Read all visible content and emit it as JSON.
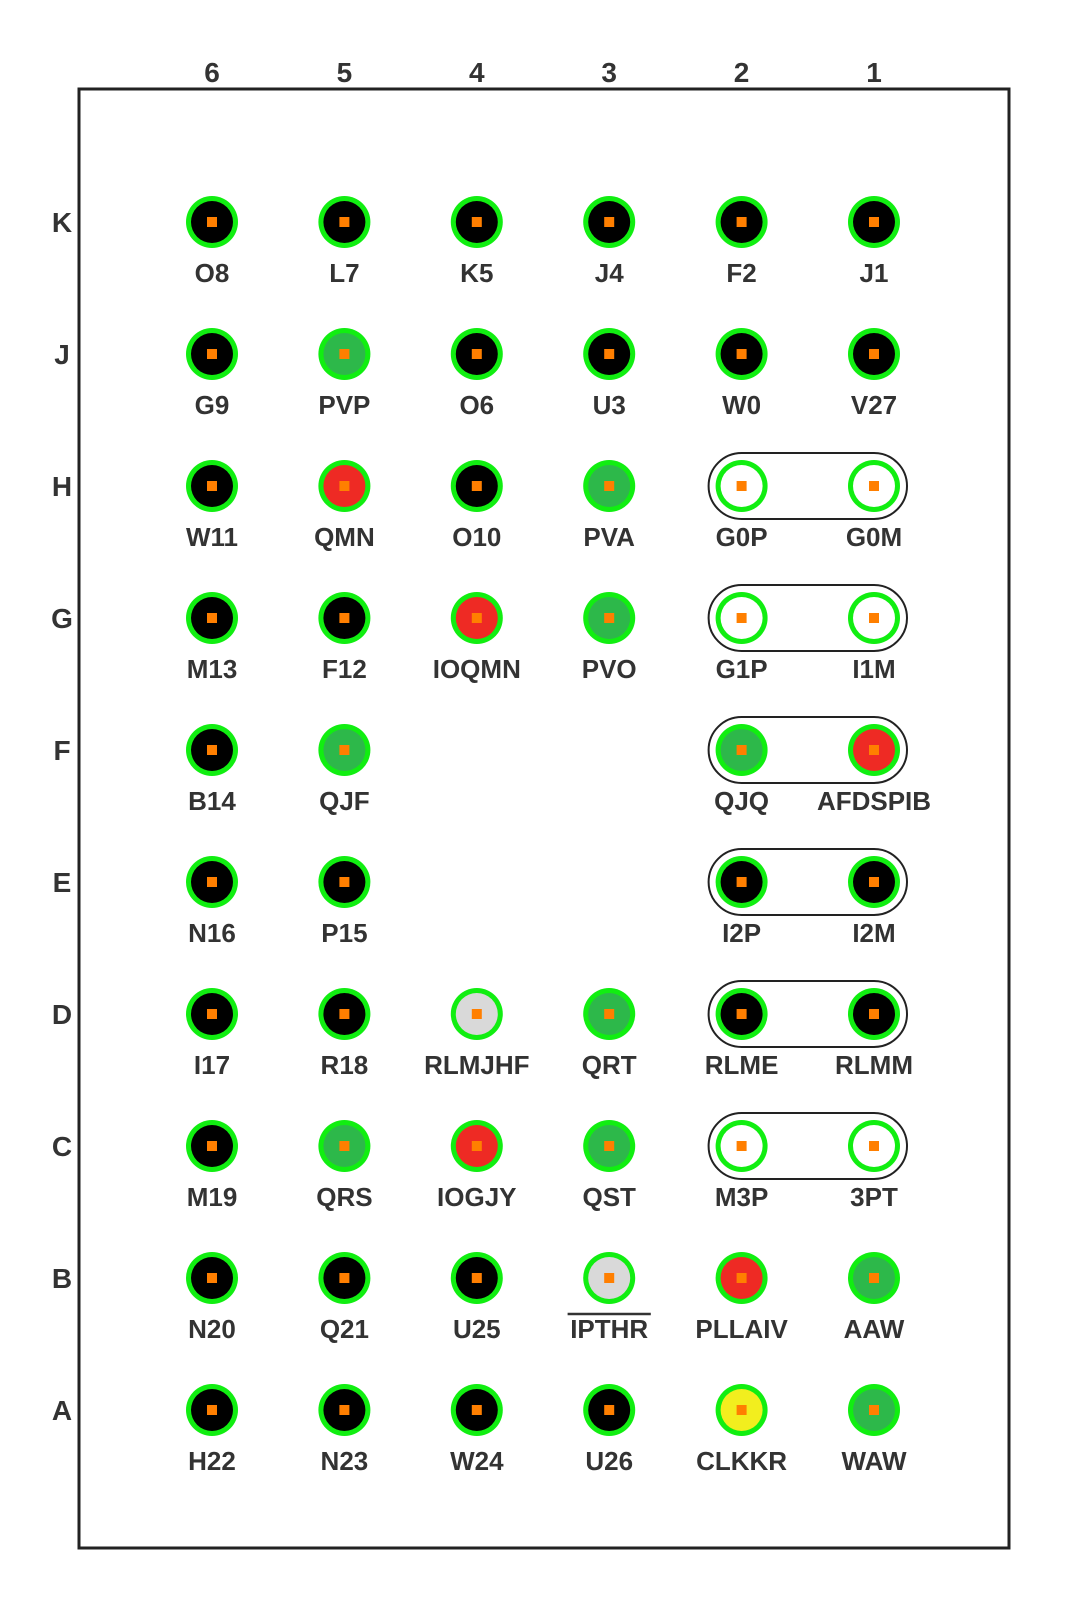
{
  "columns": [
    "6",
    "5",
    "4",
    "3",
    "2",
    "1"
  ],
  "rows": [
    "K",
    "J",
    "H",
    "G",
    "F",
    "E",
    "D",
    "C",
    "B",
    "A"
  ],
  "colors": {
    "black": "#000000",
    "green": "#2db84a",
    "red": "#ee2a24",
    "gray": "#d9d9d9",
    "yellow": "#f2ee1e",
    "white": "#ffffff",
    "ring": "#11ee11",
    "center": "#ff7f00"
  },
  "pins": [
    {
      "row": "K",
      "col": "6",
      "label": "O8",
      "fill": "black"
    },
    {
      "row": "K",
      "col": "5",
      "label": "L7",
      "fill": "black"
    },
    {
      "row": "K",
      "col": "4",
      "label": "K5",
      "fill": "black"
    },
    {
      "row": "K",
      "col": "3",
      "label": "J4",
      "fill": "black"
    },
    {
      "row": "K",
      "col": "2",
      "label": "F2",
      "fill": "black"
    },
    {
      "row": "K",
      "col": "1",
      "label": "J1",
      "fill": "black"
    },
    {
      "row": "J",
      "col": "6",
      "label": "G9",
      "fill": "black"
    },
    {
      "row": "J",
      "col": "5",
      "label": "PVP",
      "fill": "green"
    },
    {
      "row": "J",
      "col": "4",
      "label": "O6",
      "fill": "black"
    },
    {
      "row": "J",
      "col": "3",
      "label": "U3",
      "fill": "black"
    },
    {
      "row": "J",
      "col": "2",
      "label": "W0",
      "fill": "black"
    },
    {
      "row": "J",
      "col": "1",
      "label": "V27",
      "fill": "black"
    },
    {
      "row": "H",
      "col": "6",
      "label": "W11",
      "fill": "black"
    },
    {
      "row": "H",
      "col": "5",
      "label": "QMN",
      "fill": "red"
    },
    {
      "row": "H",
      "col": "4",
      "label": "O10",
      "fill": "black"
    },
    {
      "row": "H",
      "col": "3",
      "label": "PVA",
      "fill": "green"
    },
    {
      "row": "H",
      "col": "2",
      "label": "G0P",
      "fill": "white"
    },
    {
      "row": "H",
      "col": "1",
      "label": "G0M",
      "fill": "white"
    },
    {
      "row": "G",
      "col": "6",
      "label": "M13",
      "fill": "black"
    },
    {
      "row": "G",
      "col": "5",
      "label": "F12",
      "fill": "black"
    },
    {
      "row": "G",
      "col": "4",
      "label": "IOQMN",
      "fill": "red"
    },
    {
      "row": "G",
      "col": "3",
      "label": "PVO",
      "fill": "green"
    },
    {
      "row": "G",
      "col": "2",
      "label": "G1P",
      "fill": "white"
    },
    {
      "row": "G",
      "col": "1",
      "label": "I1M",
      "fill": "white"
    },
    {
      "row": "F",
      "col": "6",
      "label": "B14",
      "fill": "black"
    },
    {
      "row": "F",
      "col": "5",
      "label": "QJF",
      "fill": "green"
    },
    {
      "row": "F",
      "col": "2",
      "label": "QJQ",
      "fill": "green"
    },
    {
      "row": "F",
      "col": "1",
      "label": "AFDSPIB",
      "fill": "red"
    },
    {
      "row": "E",
      "col": "6",
      "label": "N16",
      "fill": "black"
    },
    {
      "row": "E",
      "col": "5",
      "label": "P15",
      "fill": "black"
    },
    {
      "row": "E",
      "col": "2",
      "label": "I2P",
      "fill": "black"
    },
    {
      "row": "E",
      "col": "1",
      "label": "I2M",
      "fill": "black"
    },
    {
      "row": "D",
      "col": "6",
      "label": "I17",
      "fill": "black"
    },
    {
      "row": "D",
      "col": "5",
      "label": "R18",
      "fill": "black"
    },
    {
      "row": "D",
      "col": "4",
      "label": "RLMJHF",
      "fill": "gray"
    },
    {
      "row": "D",
      "col": "3",
      "label": "QRT",
      "fill": "green"
    },
    {
      "row": "D",
      "col": "2",
      "label": "RLME",
      "fill": "black"
    },
    {
      "row": "D",
      "col": "1",
      "label": "RLMM",
      "fill": "black"
    },
    {
      "row": "C",
      "col": "6",
      "label": "M19",
      "fill": "black"
    },
    {
      "row": "C",
      "col": "5",
      "label": "QRS",
      "fill": "green"
    },
    {
      "row": "C",
      "col": "4",
      "label": "IOGJY",
      "fill": "red"
    },
    {
      "row": "C",
      "col": "3",
      "label": "QST",
      "fill": "green"
    },
    {
      "row": "C",
      "col": "2",
      "label": "M3P",
      "fill": "white"
    },
    {
      "row": "C",
      "col": "1",
      "label": "3PT",
      "fill": "white"
    },
    {
      "row": "B",
      "col": "6",
      "label": "N20",
      "fill": "black"
    },
    {
      "row": "B",
      "col": "5",
      "label": "Q21",
      "fill": "black"
    },
    {
      "row": "B",
      "col": "4",
      "label": "U25",
      "fill": "black"
    },
    {
      "row": "B",
      "col": "3",
      "label": "IPTHR",
      "fill": "gray",
      "overline": true
    },
    {
      "row": "B",
      "col": "2",
      "label": "PLLAIV",
      "fill": "red"
    },
    {
      "row": "B",
      "col": "1",
      "label": "AAW",
      "fill": "green"
    },
    {
      "row": "A",
      "col": "6",
      "label": "H22",
      "fill": "black"
    },
    {
      "row": "A",
      "col": "5",
      "label": "N23",
      "fill": "black"
    },
    {
      "row": "A",
      "col": "4",
      "label": "W24",
      "fill": "black"
    },
    {
      "row": "A",
      "col": "3",
      "label": "U26",
      "fill": "black"
    },
    {
      "row": "A",
      "col": "2",
      "label": "CLKKR",
      "fill": "yellow"
    },
    {
      "row": "A",
      "col": "1",
      "label": "WAW",
      "fill": "green"
    }
  ],
  "pairs": [
    {
      "row": "H",
      "cols": [
        "2",
        "1"
      ]
    },
    {
      "row": "G",
      "cols": [
        "2",
        "1"
      ]
    },
    {
      "row": "F",
      "cols": [
        "2",
        "1"
      ]
    },
    {
      "row": "E",
      "cols": [
        "2",
        "1"
      ]
    },
    {
      "row": "D",
      "cols": [
        "2",
        "1"
      ]
    },
    {
      "row": "C",
      "cols": [
        "2",
        "1"
      ]
    }
  ]
}
